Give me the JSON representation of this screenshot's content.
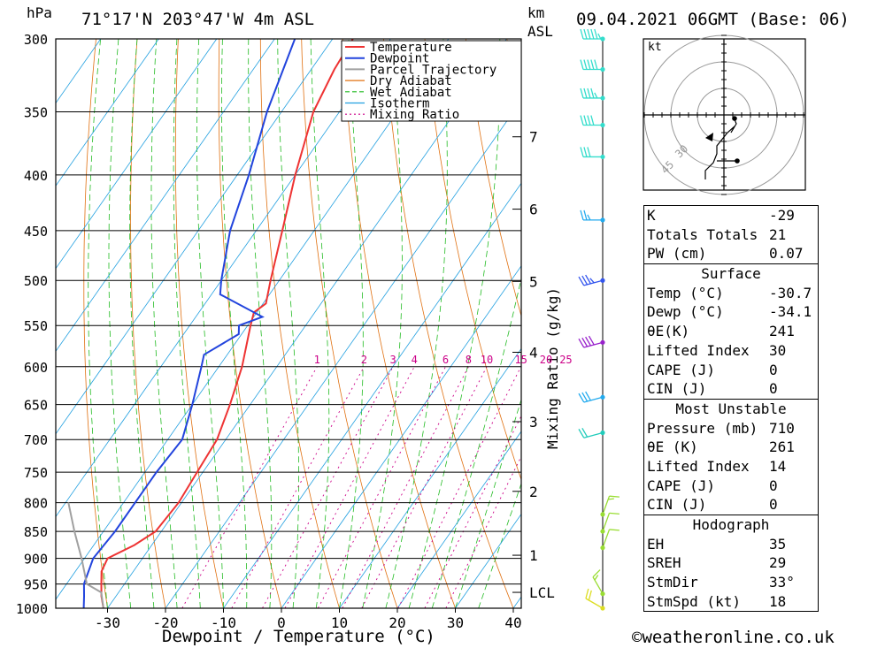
{
  "header": {
    "location": "71°17'N  203°47'W  4m  ASL",
    "datetime": "09.04.2021  06GMT  (Base: 06)",
    "p_unit": "hPa",
    "km_unit": "km",
    "asl_label": "ASL"
  },
  "colors": {
    "temperature": "#ee3333",
    "dewpoint": "#2244dd",
    "parcel": "#a0a0a0",
    "dry_adiabat": "#e07010",
    "wet_adiabat": "#22bb22",
    "isotherm": "#22a0e0",
    "mixing_ratio": "#cc0088"
  },
  "chart_data": {
    "type": "skew-t",
    "title": "71°17'N 203°47'W 4m ASL",
    "xlabel": "Dewpoint / Temperature (°C)",
    "ylabel": "hPa",
    "right_label": "Mixing Ratio (g/kg)",
    "pressure_levels": [
      300,
      350,
      400,
      450,
      500,
      550,
      600,
      650,
      700,
      750,
      800,
      850,
      900,
      950,
      1000
    ],
    "x_ticks": [
      -30,
      -20,
      -10,
      0,
      10,
      20,
      30,
      40
    ],
    "x_tick_labels": [
      "-30",
      "-20",
      "-10",
      "0",
      "10",
      "20",
      "30",
      "40"
    ],
    "km_ticks": [
      {
        "label": "7",
        "p": 369
      },
      {
        "label": "6",
        "p": 430
      },
      {
        "label": "5",
        "p": 501
      },
      {
        "label": "4",
        "p": 582
      },
      {
        "label": "3",
        "p": 674
      },
      {
        "label": "2",
        "p": 781
      },
      {
        "label": "1",
        "p": 894
      },
      {
        "label": "LCL",
        "p": 967
      }
    ],
    "mixing_ratio_labels": [
      {
        "label": "1",
        "w": 1
      },
      {
        "label": "2",
        "w": 2
      },
      {
        "label": "3",
        "w": 3
      },
      {
        "label": "4",
        "w": 4
      },
      {
        "label": "6",
        "w": 6
      },
      {
        "label": "8",
        "w": 8
      },
      {
        "label": "10",
        "w": 10
      },
      {
        "label": "15",
        "w": 15
      },
      {
        "label": "20",
        "w": 20
      },
      {
        "label": "25",
        "w": 25
      }
    ],
    "legend": [
      "Temperature",
      "Dewpoint",
      "Parcel Trajectory",
      "Dry Adiabat",
      "Wet Adiabat",
      "Isotherm",
      "Mixing Ratio"
    ],
    "series": [
      {
        "name": "Temperature",
        "points": [
          [
            1000,
            -30.7
          ],
          [
            975,
            -32.5
          ],
          [
            950,
            -34.0
          ],
          [
            925,
            -35.5
          ],
          [
            900,
            -36.0
          ],
          [
            875,
            -33.0
          ],
          [
            850,
            -31.0
          ],
          [
            800,
            -30.5
          ],
          [
            750,
            -31.0
          ],
          [
            700,
            -31.5
          ],
          [
            650,
            -33.5
          ],
          [
            600,
            -36.0
          ],
          [
            550,
            -39.5
          ],
          [
            535,
            -40.5
          ],
          [
            525,
            -39.5
          ],
          [
            500,
            -41.5
          ],
          [
            450,
            -45.5
          ],
          [
            400,
            -50.0
          ],
          [
            350,
            -54.5
          ],
          [
            320,
            -56.0
          ],
          [
            300,
            -56.5
          ]
        ]
      },
      {
        "name": "Dewpoint",
        "points": [
          [
            1000,
            -34.1
          ],
          [
            975,
            -35.5
          ],
          [
            950,
            -37.0
          ],
          [
            900,
            -38.5
          ],
          [
            850,
            -38.0
          ],
          [
            800,
            -38.0
          ],
          [
            750,
            -38.0
          ],
          [
            700,
            -37.5
          ],
          [
            650,
            -40.0
          ],
          [
            600,
            -43.0
          ],
          [
            585,
            -44.0
          ],
          [
            560,
            -40.5
          ],
          [
            550,
            -41.5
          ],
          [
            540,
            -38.5
          ],
          [
            515,
            -48.5
          ],
          [
            500,
            -50.0
          ],
          [
            450,
            -54.5
          ],
          [
            400,
            -58.0
          ],
          [
            350,
            -62.5
          ],
          [
            300,
            -66.5
          ]
        ]
      },
      {
        "name": "Parcel Trajectory",
        "points": [
          [
            1000,
            -30.7
          ],
          [
            967,
            -33.0
          ],
          [
            950,
            -36.5
          ],
          [
            900,
            -40.5
          ],
          [
            850,
            -45.0
          ],
          [
            800,
            -49.5
          ]
        ]
      }
    ]
  },
  "wind_barbs": [
    {
      "p": 300,
      "dir": 270,
      "kt": 55,
      "color": "#33ddcc"
    },
    {
      "p": 320,
      "dir": 270,
      "kt": 50,
      "color": "#33ddcc"
    },
    {
      "p": 340,
      "dir": 270,
      "kt": 45,
      "color": "#33ddcc"
    },
    {
      "p": 360,
      "dir": 270,
      "kt": 40,
      "color": "#33ddcc"
    },
    {
      "p": 385,
      "dir": 270,
      "kt": 30,
      "color": "#33ddcc"
    },
    {
      "p": 440,
      "dir": 270,
      "kt": 25,
      "color": "#22aaee"
    },
    {
      "p": 500,
      "dir": 255,
      "kt": 35,
      "color": "#3355ee"
    },
    {
      "p": 570,
      "dir": 255,
      "kt": 40,
      "color": "#9922cc"
    },
    {
      "p": 640,
      "dir": 255,
      "kt": 30,
      "color": "#22aaee"
    },
    {
      "p": 690,
      "dir": 255,
      "kt": 20,
      "color": "#22ccbb"
    },
    {
      "p": 820,
      "dir": 20,
      "kt": 15,
      "color": "#99dd33"
    },
    {
      "p": 850,
      "dir": 20,
      "kt": 10,
      "color": "#99dd33"
    },
    {
      "p": 880,
      "dir": 20,
      "kt": 10,
      "color": "#99dd33"
    },
    {
      "p": 970,
      "dir": 330,
      "kt": 15,
      "color": "#99dd33"
    },
    {
      "p": 1000,
      "dir": 300,
      "kt": 20,
      "color": "#dddd22"
    }
  ],
  "hodograph": {
    "unit_label": "kt",
    "ring_labels": [
      "30",
      "45"
    ]
  },
  "indices": {
    "k_label": "K",
    "k_value": "-29",
    "tt_label": "Totals Totals",
    "tt_value": "21",
    "pw_label": "PW (cm)",
    "pw_value": "0.07",
    "surface": {
      "title": "Surface",
      "temp_label": "Temp (°C)",
      "temp_value": "-30.7",
      "dewp_label": "Dewp (°C)",
      "dewp_value": "-34.1",
      "theta_label": "θE(K)",
      "theta_value": "241",
      "li_label": "Lifted Index",
      "li_value": "30",
      "cape_label": "CAPE (J)",
      "cape_value": "0",
      "cin_label": "CIN (J)",
      "cin_value": "0"
    },
    "most_unstable": {
      "title": "Most Unstable",
      "pressure_label": "Pressure (mb)",
      "pressure_value": "710",
      "theta_label": "θE (K)",
      "theta_value": "261",
      "li_label": "Lifted Index",
      "li_value": "14",
      "cape_label": "CAPE (J)",
      "cape_value": "0",
      "cin_label": "CIN (J)",
      "cin_value": "0"
    },
    "hodograph": {
      "title": "Hodograph",
      "eh_label": "EH",
      "eh_value": "35",
      "sreh_label": "SREH",
      "sreh_value": "29",
      "stmdir_label": "StmDir",
      "stmdir_value": "33°",
      "stmspd_label": "StmSpd (kt)",
      "stmspd_value": "18"
    }
  },
  "copyright": "©weatheronline.co.uk"
}
